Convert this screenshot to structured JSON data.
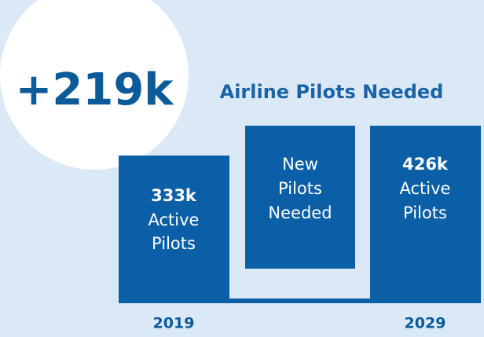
{
  "headline": "+219k",
  "title": "Airline Pilots Needed",
  "blocks": [
    {
      "value": "333k",
      "lines": [
        "Active",
        "Pilots"
      ],
      "year": "2019"
    },
    {
      "lines": [
        "New",
        "Pilots",
        "Needed"
      ]
    },
    {
      "value": "426k",
      "lines": [
        "Active",
        "Pilots"
      ],
      "year": "2029"
    }
  ]
}
